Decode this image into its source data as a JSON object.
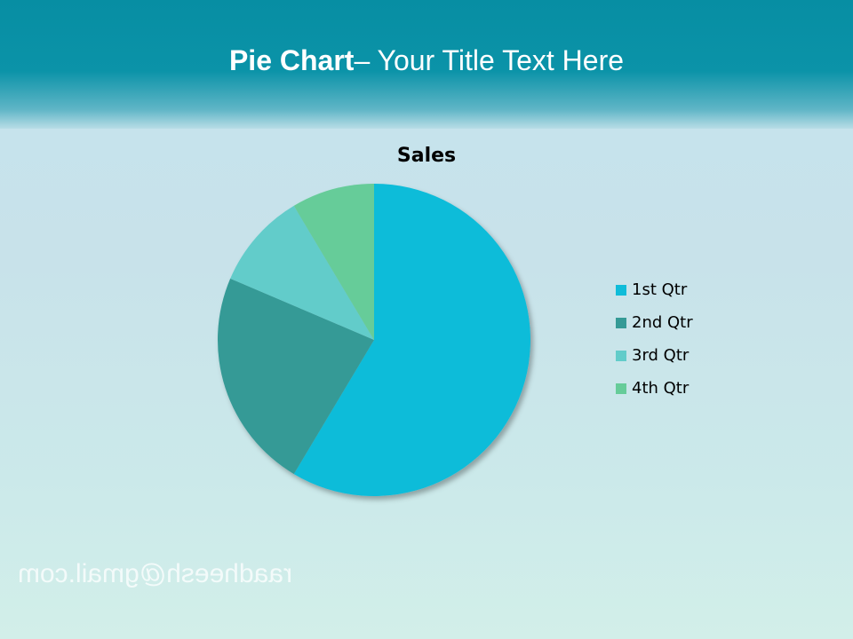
{
  "slide_title": {
    "bold": "Pie Chart",
    "rest": "– Your Title Text Here"
  },
  "watermark": "raadheesh@gmail.com",
  "chart_data": {
    "type": "pie",
    "title": "Sales",
    "categories": [
      "1st Qtr",
      "2nd Qtr",
      "3rd Qtr",
      "4th Qtr"
    ],
    "values": [
      8.2,
      3.2,
      1.4,
      1.2
    ],
    "colors": [
      "#0fbcd9",
      "#359a96",
      "#62ccca",
      "#66cc99"
    ],
    "legend": "right"
  }
}
